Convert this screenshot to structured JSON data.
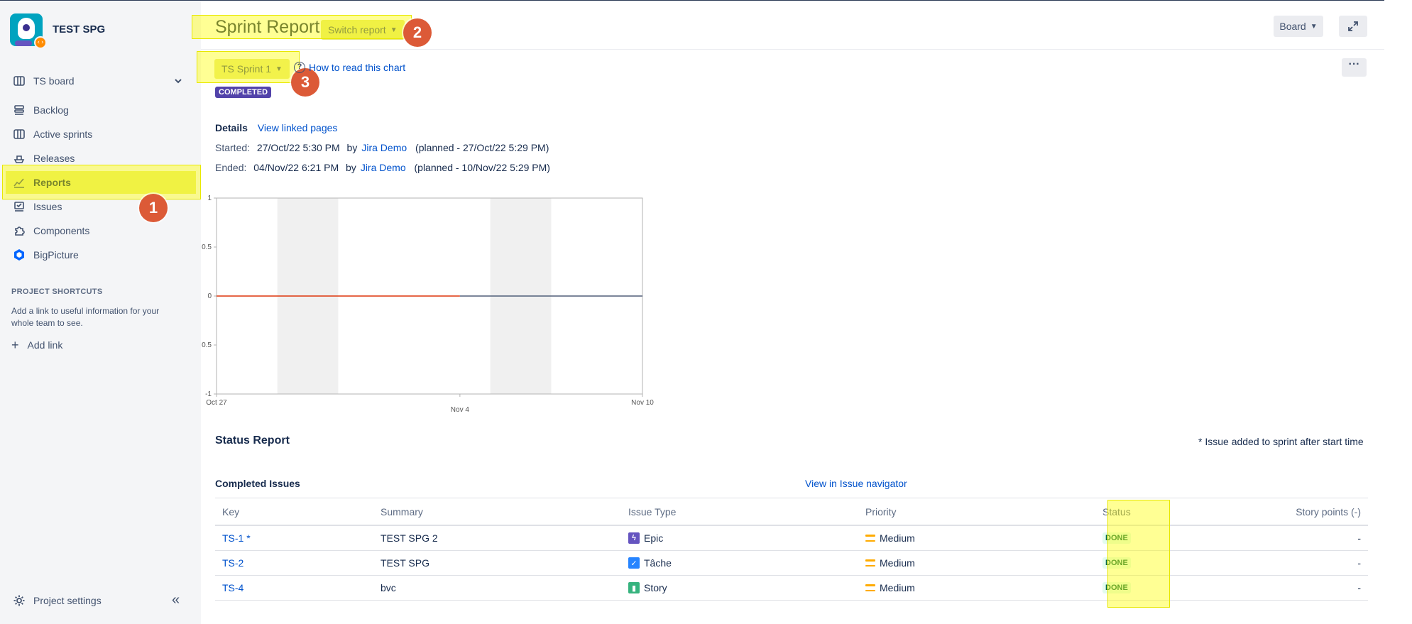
{
  "project": {
    "name": "TEST SPG",
    "badge_glyph": "‹›"
  },
  "sidebar": {
    "board": "TS board",
    "items": [
      {
        "label": "Backlog",
        "icon": "backlog-icon"
      },
      {
        "label": "Active sprints",
        "icon": "board-columns-icon"
      },
      {
        "label": "Releases",
        "icon": "ship-icon"
      },
      {
        "label": "Reports",
        "icon": "chart-line-icon"
      },
      {
        "label": "Issues",
        "icon": "issues-check-icon"
      },
      {
        "label": "Components",
        "icon": "puzzle-icon"
      },
      {
        "label": "BigPicture",
        "icon": "bigpicture-hexagon-icon"
      }
    ],
    "shortcuts_title": "PROJECT SHORTCUTS",
    "shortcuts_desc": "Add a link to useful information for your whole team to see.",
    "add_link": "Add link",
    "project_settings": "Project settings"
  },
  "annotations": [
    "1",
    "2",
    "3"
  ],
  "header": {
    "title": "Sprint Report",
    "switch_report": "Switch report",
    "board_button": "Board"
  },
  "sprint": {
    "selector": "TS Sprint 1",
    "how_to": "How to read this chart",
    "status": "COMPLETED",
    "details_label": "Details",
    "view_linked": "View linked pages",
    "started_label": "Started:",
    "started_value": "27/Oct/22 5:30 PM",
    "ended_label": "Ended:",
    "ended_value": "04/Nov/22 6:21 PM",
    "by": "by",
    "user": "Jira Demo",
    "started_planned": "(planned - 27/Oct/22 5:29 PM)",
    "ended_planned": "(planned - 10/Nov/22 5:29 PM)"
  },
  "chart_data": {
    "type": "line",
    "title": "",
    "xlabel": "",
    "ylabel": "",
    "ylim": [
      -1,
      1
    ],
    "yticks": [
      "1",
      "0.5",
      "0",
      "0.5",
      "-1"
    ],
    "xticks": [
      "Oct 27",
      "Nov 4",
      "Nov 10"
    ],
    "x_range": [
      "2022-10-27",
      "2022-11-10"
    ],
    "series": [
      {
        "color": "#de350b",
        "x": [
          "2022-10-27",
          "2022-11-04"
        ],
        "values": [
          0,
          0
        ]
      },
      {
        "color": "#505f79",
        "x": [
          "2022-11-04",
          "2022-11-10"
        ],
        "values": [
          0,
          0
        ]
      }
    ],
    "nonworking_days": [
      [
        "2022-10-29",
        "2022-10-31"
      ],
      [
        "2022-11-05",
        "2022-11-07"
      ]
    ],
    "grid": false
  },
  "status_report": {
    "title": "Status Report",
    "note": "* Issue added to sprint after start time",
    "completed_title": "Completed Issues",
    "issue_nav_link": "View in Issue navigator",
    "columns": [
      "Key",
      "Summary",
      "Issue Type",
      "Priority",
      "Status",
      "Story points (-)"
    ],
    "rows": [
      {
        "key": "TS-1 *",
        "summary": "TEST SPG 2",
        "type": "Epic",
        "type_icon": "epic-bolt-icon",
        "type_color": "#6554c0",
        "type_glyph": "ϟ",
        "priority": "Medium",
        "status": "DONE",
        "points": "-"
      },
      {
        "key": "TS-2",
        "summary": "TEST SPG",
        "type": "Tâche",
        "type_icon": "task-check-icon",
        "type_color": "#2684ff",
        "type_glyph": "✓",
        "priority": "Medium",
        "status": "DONE",
        "points": "-"
      },
      {
        "key": "TS-4",
        "summary": "bvc",
        "type": "Story",
        "type_icon": "story-bookmark-icon",
        "type_color": "#36b37e",
        "type_glyph": "▮",
        "priority": "Medium",
        "status": "DONE",
        "points": "-"
      }
    ]
  }
}
